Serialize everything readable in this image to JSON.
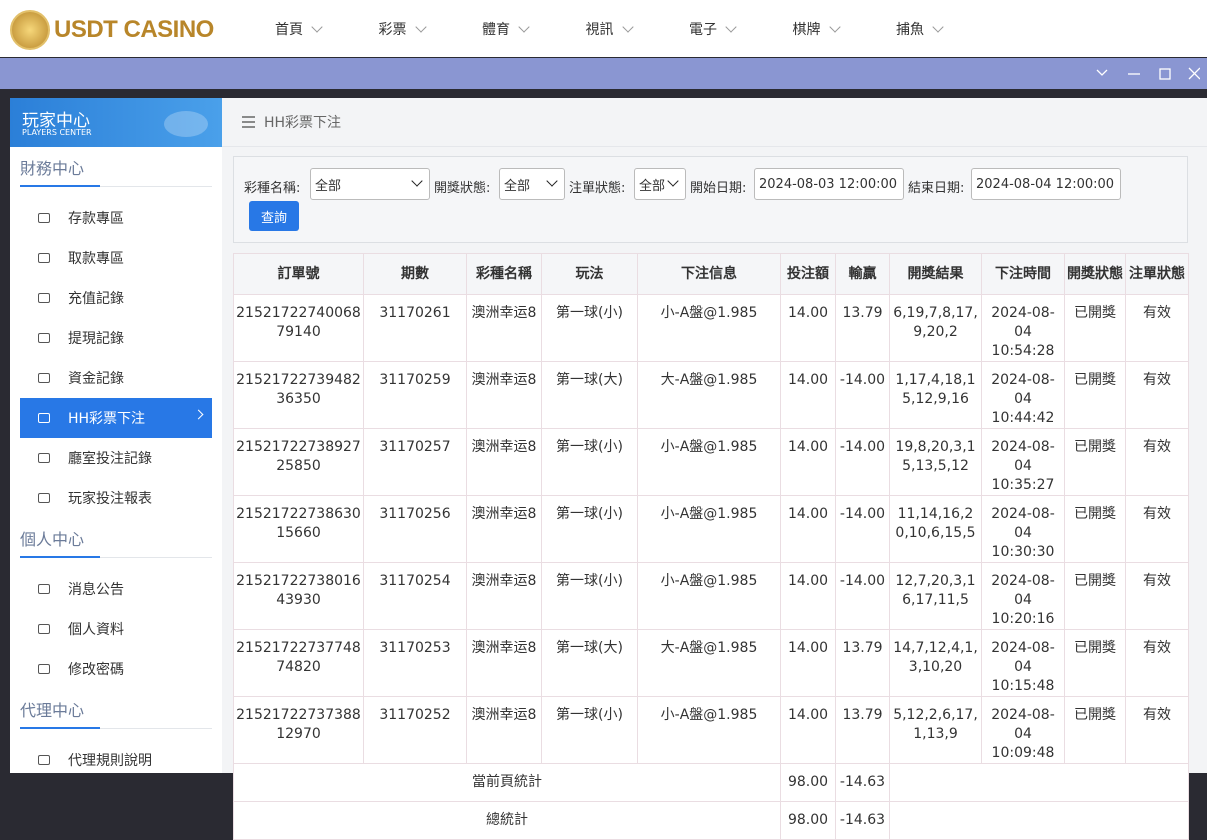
{
  "nav": {
    "logo": "USDT CASINO",
    "menu": [
      "首頁",
      "彩票",
      "體育",
      "視訊",
      "電子",
      "棋牌",
      "捕魚"
    ]
  },
  "sidebar": {
    "title": "玩家中心",
    "subtitle": "PLAYERS CENTER",
    "active": "HH彩票下注",
    "sections": [
      {
        "title": "財務中心",
        "items": [
          "存款專區",
          "取款專區",
          "充值記錄",
          "提現記錄",
          "資金記錄",
          "HH彩票下注",
          "廳室投注記錄",
          "玩家投注報表"
        ]
      },
      {
        "title": "個人中心",
        "items": [
          "消息公告",
          "個人資料",
          "修改密碼"
        ]
      },
      {
        "title": "代理中心",
        "items": [
          "代理規則說明"
        ]
      }
    ]
  },
  "breadcrumb": "HH彩票下注",
  "filters": {
    "fields": [
      {
        "label": "彩種名稱:",
        "value": "全部"
      },
      {
        "label": "開獎狀態:",
        "value": "全部"
      },
      {
        "label": "注單狀態:",
        "value": "全部"
      },
      {
        "label": "開始日期:",
        "value": "2024-08-03 12:00:00"
      },
      {
        "label": "結束日期:",
        "value": "2024-08-04 12:00:00"
      }
    ],
    "button": "查詢"
  },
  "table": {
    "headers": [
      "訂單號",
      "期數",
      "彩種名稱",
      "玩法",
      "下注信息",
      "投注額",
      "輸贏",
      "開獎結果",
      "下注時間",
      "開獎狀態",
      "注單狀態"
    ],
    "rows": [
      [
        "2152172274006879140",
        "31170261",
        "澳洲幸运8",
        "第一球(小)",
        "小-A盤@1.985",
        "14.00",
        "13.79",
        "6,19,7,8,17,9,20,2",
        "2024-08-04 10:54:28",
        "已開獎",
        "有效"
      ],
      [
        "2152172273948236350",
        "31170259",
        "澳洲幸运8",
        "第一球(大)",
        "大-A盤@1.985",
        "14.00",
        "-14.00",
        "1,17,4,18,15,12,9,16",
        "2024-08-04 10:44:42",
        "已開獎",
        "有效"
      ],
      [
        "2152172273892725850",
        "31170257",
        "澳洲幸运8",
        "第一球(小)",
        "小-A盤@1.985",
        "14.00",
        "-14.00",
        "19,8,20,3,15,13,5,12",
        "2024-08-04 10:35:27",
        "已開獎",
        "有效"
      ],
      [
        "2152172273863015660",
        "31170256",
        "澳洲幸运8",
        "第一球(小)",
        "小-A盤@1.985",
        "14.00",
        "-14.00",
        "11,14,16,20,10,6,15,5",
        "2024-08-04 10:30:30",
        "已開獎",
        "有效"
      ],
      [
        "2152172273801643930",
        "31170254",
        "澳洲幸运8",
        "第一球(小)",
        "小-A盤@1.985",
        "14.00",
        "-14.00",
        "12,7,20,3,16,17,11,5",
        "2024-08-04 10:20:16",
        "已開獎",
        "有效"
      ],
      [
        "2152172273774874820",
        "31170253",
        "澳洲幸运8",
        "第一球(大)",
        "大-A盤@1.985",
        "14.00",
        "13.79",
        "14,7,12,4,1,3,10,20",
        "2024-08-04 10:15:48",
        "已開獎",
        "有效"
      ],
      [
        "2152172273738812970",
        "31170252",
        "澳洲幸运8",
        "第一球(小)",
        "小-A盤@1.985",
        "14.00",
        "13.79",
        "5,12,2,6,17,1,13,9",
        "2024-08-04 10:09:48",
        "已開獎",
        "有效"
      ]
    ],
    "summary": [
      {
        "label": "當前頁統計",
        "stake": "98.00",
        "win": "-14.63"
      },
      {
        "label": "總統計",
        "stake": "98.00",
        "win": "-14.63"
      }
    ]
  }
}
